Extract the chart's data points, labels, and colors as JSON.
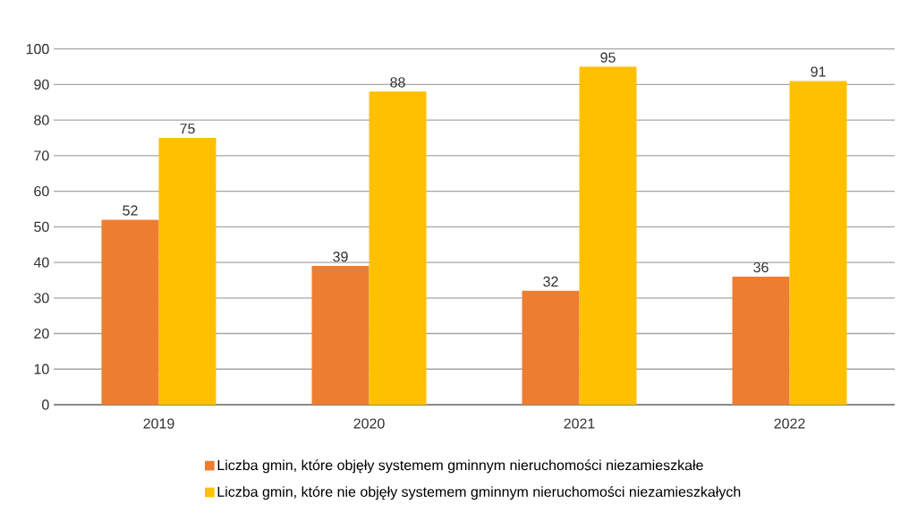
{
  "chart_data": {
    "type": "bar",
    "categories": [
      "2019",
      "2020",
      "2021",
      "2022"
    ],
    "series": [
      {
        "name": "Liczba gmin, które objęły systemem gminnym nieruchomości niezamieszkałe",
        "color": "#ed7d31",
        "values": [
          52,
          39,
          32,
          36
        ]
      },
      {
        "name": "Liczba gmin, które nie objęły systemem gminnym nieruchomości niezamieszkałych",
        "color": "#ffc000",
        "values": [
          75,
          88,
          95,
          91
        ]
      }
    ],
    "ylim": [
      0,
      100
    ],
    "yticks": [
      0,
      10,
      20,
      30,
      40,
      50,
      60,
      70,
      80,
      90,
      100
    ],
    "grid": "y",
    "data_labels": true,
    "legend": "bottom"
  }
}
